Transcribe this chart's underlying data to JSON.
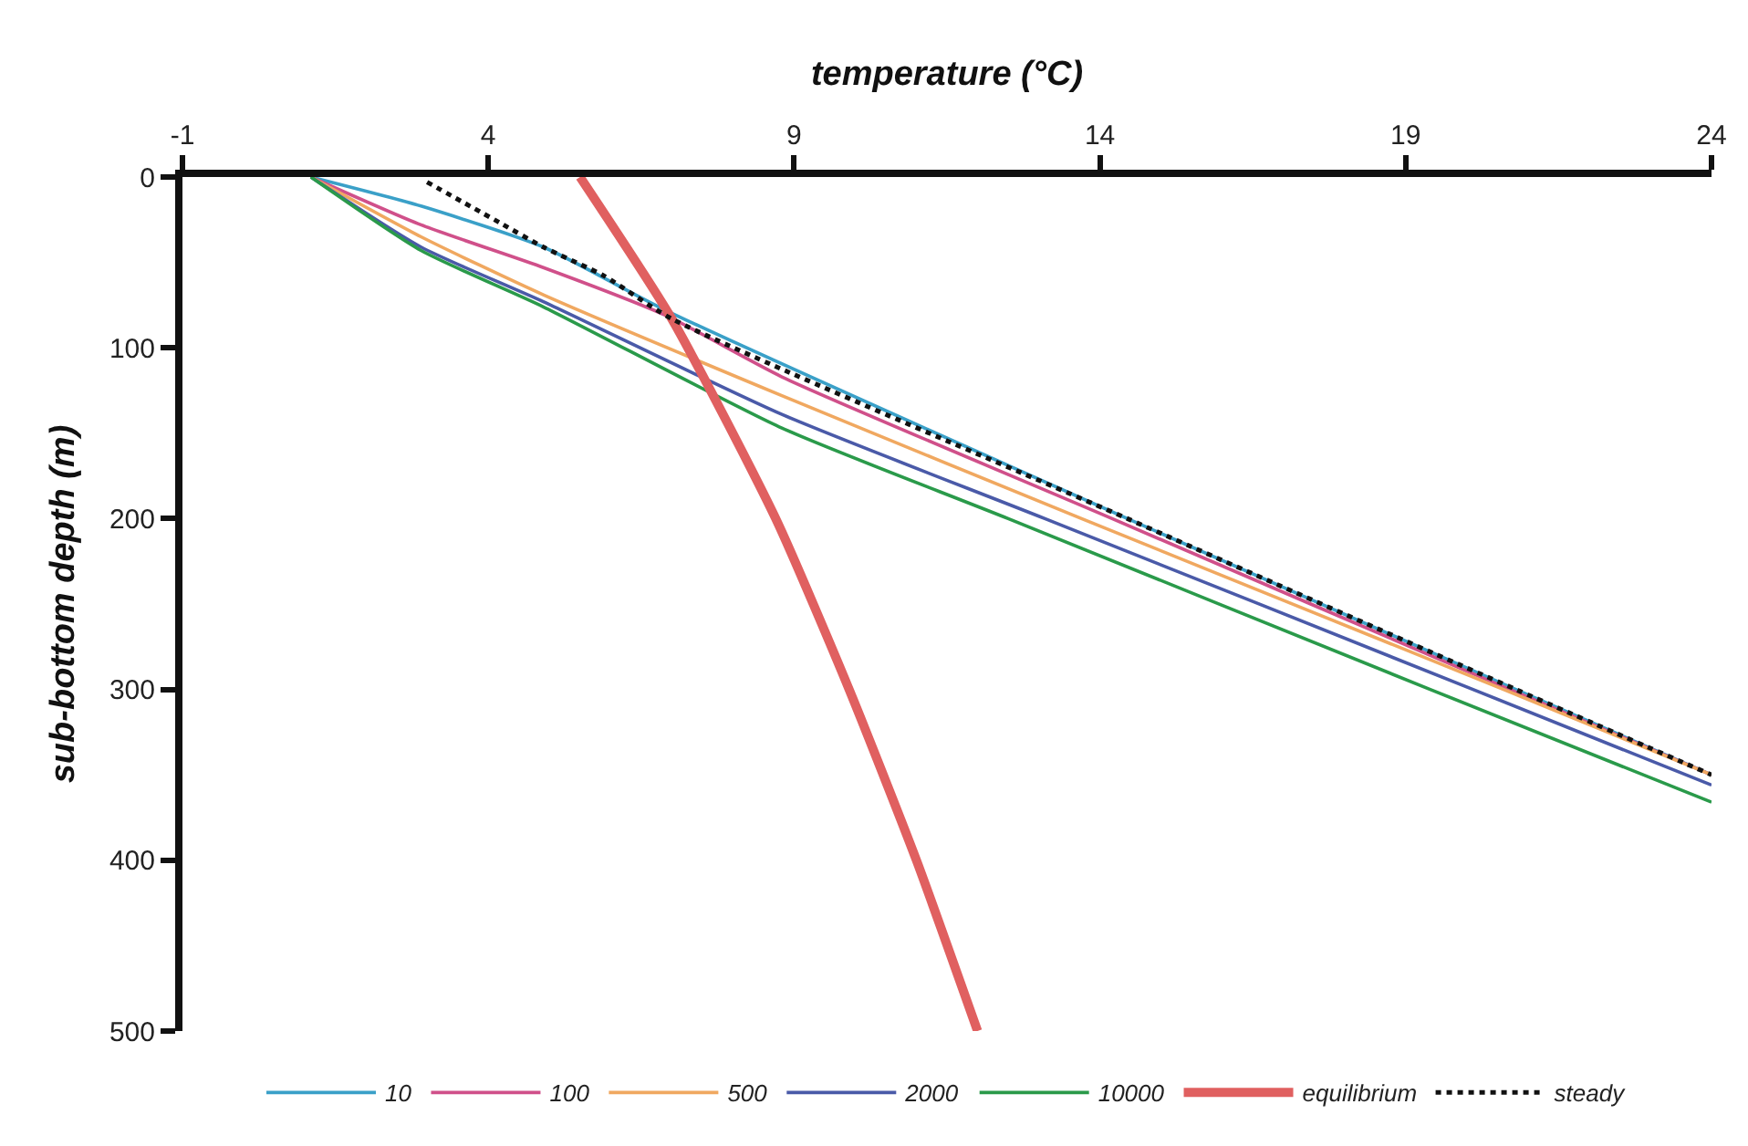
{
  "chart_data": {
    "type": "line",
    "xlabel": "temperature (°C)",
    "ylabel": "sub-bottom depth (m)",
    "xlim": [
      -1,
      24
    ],
    "xticks": [
      -1,
      4,
      9,
      14,
      19,
      24
    ],
    "ylim": [
      500,
      0
    ],
    "yticks": [
      0,
      100,
      200,
      300,
      400,
      500
    ],
    "legend": "bottom",
    "marker": "none",
    "series": [
      {
        "name": "10",
        "color": "#3aa0c8",
        "x": [
          1.1,
          2.9,
          4.9,
          6.9,
          14.45,
          20.8,
          24
        ],
        "values": [
          0,
          17,
          41,
          78,
          200,
          300,
          350
        ]
      },
      {
        "name": "100",
        "color": "#d0508a",
        "x": [
          1.1,
          2.9,
          4.9,
          6.9,
          8.8,
          14.2,
          20.7,
          24
        ],
        "values": [
          0,
          28,
          53,
          81,
          117,
          200,
          300,
          350
        ]
      },
      {
        "name": "500",
        "color": "#f0a860",
        "x": [
          1.1,
          2.9,
          4.9,
          8.8,
          13.7,
          20.6,
          24
        ],
        "values": [
          0,
          35,
          69,
          128,
          200,
          300,
          350
        ]
      },
      {
        "name": "2000",
        "color": "#4a5aa8",
        "x": [
          1.1,
          2.9,
          4.9,
          8.8,
          13.1,
          20.1,
          24
        ],
        "values": [
          0,
          41,
          73,
          139,
          200,
          300,
          356
        ]
      },
      {
        "name": "10000",
        "color": "#2a9a4a",
        "x": [
          1.1,
          2.9,
          4.9,
          8.8,
          12.5,
          19.4,
          24
        ],
        "values": [
          0,
          43,
          76,
          147,
          200,
          300,
          366
        ]
      },
      {
        "name": "equilibrium",
        "color": "#e06060",
        "x": [
          5.5,
          7.0,
          8.7,
          9.9,
          11.0,
          12.0
        ],
        "values": [
          0,
          83,
          200,
          300,
          400,
          500
        ]
      },
      {
        "name": "steady",
        "color": "#111111",
        "line_style": "dotted",
        "x": [
          3.0,
          4.2,
          4.9,
          5.9,
          7.0,
          14.45,
          20.8,
          24
        ],
        "values": [
          3,
          27,
          41,
          58,
          83,
          200,
          300,
          350
        ]
      }
    ]
  }
}
